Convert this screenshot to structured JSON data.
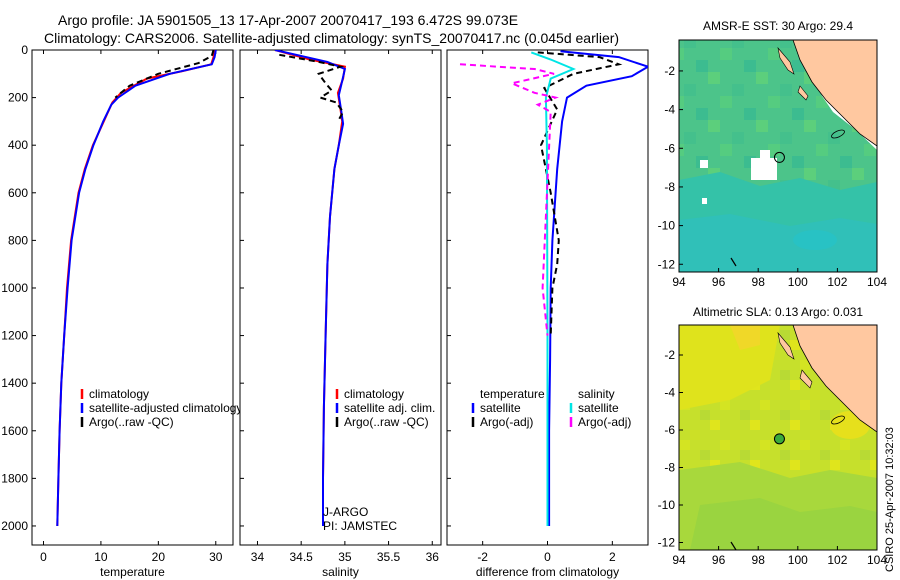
{
  "header": {
    "line1": "Argo profile: JA 5901505_13 17-Apr-2007 20070417_193 6.472S 99.073E",
    "line2": "Climatology: CARS2006. Satellite-adjusted climatology: synTS_20070417.nc (0.045d earlier)"
  },
  "credit": "CSIRO 25-Apr-2007 10:32:03",
  "colors": {
    "climatology": "#ff0000",
    "satellite": "#0000ff",
    "argo": "#000000",
    "salinity_satellite": "#00e5e5",
    "salinity_argo": "#ff00ff",
    "land": "#ffc8a0"
  },
  "chart_data": [
    {
      "type": "line",
      "id": "temperature",
      "xlabel": "temperature",
      "ylabel": "",
      "xlim": [
        -2,
        33
      ],
      "ylim": [
        2080,
        0
      ],
      "xticks": [
        0,
        10,
        20,
        30
      ],
      "yticks": [
        0,
        200,
        400,
        600,
        800,
        1000,
        1200,
        1400,
        1600,
        1800,
        2000
      ],
      "legend": [
        "climatology",
        "satellite-adjusted climatology",
        "Argo(..raw -QC)"
      ],
      "series": [
        {
          "name": "climatology",
          "color": "#ff0000",
          "x": [
            29.8,
            29.6,
            29.2,
            24,
            18,
            13.5,
            12,
            10.5,
            8.6,
            7.2,
            6.1,
            4.8,
            4.1,
            3.6,
            3.1,
            2.8,
            2.6,
            2.4
          ],
          "y": [
            0,
            30,
            60,
            90,
            120,
            180,
            220,
            300,
            400,
            500,
            600,
            800,
            1000,
            1200,
            1400,
            1600,
            1800,
            2000
          ]
        },
        {
          "name": "satellite-adjusted climatology",
          "color": "#0000ff",
          "x": [
            30,
            29.8,
            29.3,
            22,
            16,
            13,
            11.8,
            10.4,
            8.7,
            7.3,
            6.2,
            4.9,
            4.2,
            3.6,
            3.1,
            2.8,
            2.6,
            2.4
          ],
          "y": [
            0,
            30,
            60,
            100,
            150,
            200,
            230,
            300,
            400,
            500,
            600,
            800,
            1000,
            1200,
            1400,
            1600,
            1800,
            2000
          ]
        },
        {
          "name": "Argo(..raw -QC)",
          "color": "#000000",
          "x": [
            29.6,
            29.3,
            27,
            20,
            15,
            12.5
          ],
          "y": [
            0,
            25,
            55,
            100,
            150,
            200
          ]
        }
      ]
    },
    {
      "type": "line",
      "id": "salinity",
      "xlabel": "salinity",
      "xlim": [
        33.8,
        36.1
      ],
      "ylim": [
        2080,
        0
      ],
      "xticks": [
        34,
        34.5,
        35,
        35.5,
        36
      ],
      "legend": [
        "climatology",
        "satellite adj. clim.",
        "Argo(..raw -QC)"
      ],
      "annotation": [
        "J-ARGO",
        "PI: JAMSTEC"
      ],
      "series": [
        {
          "name": "climatology",
          "color": "#ff0000",
          "x": [
            34.2,
            34.6,
            35.0,
            34.98,
            34.92,
            34.95,
            34.97,
            34.93,
            34.88,
            34.83,
            34.8,
            34.78,
            34.76,
            34.75,
            34.75
          ],
          "y": [
            0,
            40,
            70,
            120,
            180,
            250,
            300,
            400,
            500,
            700,
            900,
            1200,
            1500,
            1800,
            2000
          ]
        },
        {
          "name": "satellite adj. clim.",
          "color": "#0000ff",
          "x": [
            34.2,
            34.8,
            35.0,
            34.97,
            34.93,
            34.96,
            34.98,
            34.93,
            34.88,
            34.83,
            34.8,
            34.78,
            34.76,
            34.75,
            34.75
          ],
          "y": [
            0,
            50,
            80,
            130,
            190,
            260,
            310,
            400,
            500,
            700,
            900,
            1200,
            1500,
            1800,
            2000
          ]
        },
        {
          "name": "Argo(..raw -QC)",
          "color": "#000000",
          "x": [
            34.25,
            34.7,
            34.95,
            34.7,
            34.78,
            34.85,
            34.72,
            34.9,
            34.98,
            34.92
          ],
          "y": [
            20,
            50,
            70,
            100,
            140,
            170,
            200,
            220,
            260,
            300
          ]
        }
      ]
    },
    {
      "type": "line",
      "id": "difference",
      "xlabel": "difference from climatology",
      "xlim": [
        -3.1,
        3.1
      ],
      "ylim": [
        2080,
        0
      ],
      "xticks": [
        -2,
        0,
        2
      ],
      "legend": [
        {
          "group": "temperature",
          "items": [
            "satellite",
            "Argo(-adj)"
          ]
        },
        {
          "group": "salinity",
          "items": [
            "satellite",
            "Argo(-adj)"
          ]
        }
      ],
      "series": [
        {
          "name": "temperature satellite",
          "color": "#0000ff",
          "x": [
            0.4,
            2.2,
            3.1,
            2.6,
            1.2,
            0.6,
            0.45,
            0.3,
            0.15,
            0.1,
            0.08,
            0.05,
            0.05
          ],
          "y": [
            5,
            30,
            70,
            110,
            150,
            200,
            300,
            500,
            800,
            1000,
            1300,
            1600,
            2000
          ]
        },
        {
          "name": "temperature Argo(-adj)",
          "color": "#000000",
          "x": [
            -0.3,
            1.6,
            2.2,
            0.8,
            -0.1,
            0.3,
            -0.2,
            0.1,
            0.35,
            0.3,
            0.15,
            0.1
          ],
          "y": [
            10,
            30,
            60,
            100,
            160,
            250,
            400,
            600,
            800,
            900,
            1000,
            1200
          ]
        },
        {
          "name": "salinity satellite",
          "color": "#00e5e5",
          "x": [
            -0.5,
            0.1,
            0.8,
            0.1,
            -0.05,
            -0.02,
            -0.01,
            0.0,
            0.0
          ],
          "y": [
            10,
            40,
            80,
            120,
            200,
            400,
            800,
            1200,
            2000
          ]
        },
        {
          "name": "salinity Argo(-adj)",
          "color": "#ff00ff",
          "x": [
            -2.7,
            -0.4,
            0.2,
            -1.1,
            -0.4,
            0.25,
            -0.3,
            0.1,
            -0.15,
            0.0
          ],
          "y": [
            60,
            80,
            100,
            140,
            180,
            200,
            230,
            260,
            1000,
            1200
          ]
        }
      ]
    },
    {
      "type": "heatmap",
      "id": "sst_map",
      "title": "AMSR-E SST: 30 Argo: 29.4",
      "xlim": [
        94,
        104
      ],
      "ylim": [
        -12.4,
        -0.4
      ],
      "xticks": [
        94,
        96,
        98,
        100,
        102,
        104
      ],
      "yticks": [
        -2,
        -4,
        -6,
        -8,
        -10,
        -12
      ],
      "float_position": {
        "lon": 99.073,
        "lat": -6.472
      }
    },
    {
      "type": "heatmap",
      "id": "sla_map",
      "title": "Altimetric SLA: 0.13 Argo: 0.031",
      "xlim": [
        94,
        104
      ],
      "ylim": [
        -12.4,
        -0.4
      ],
      "xticks": [
        94,
        96,
        98,
        100,
        102,
        104
      ],
      "yticks": [
        -2,
        -4,
        -6,
        -8,
        -10,
        -12
      ],
      "float_position": {
        "lon": 99.073,
        "lat": -6.472
      }
    }
  ]
}
